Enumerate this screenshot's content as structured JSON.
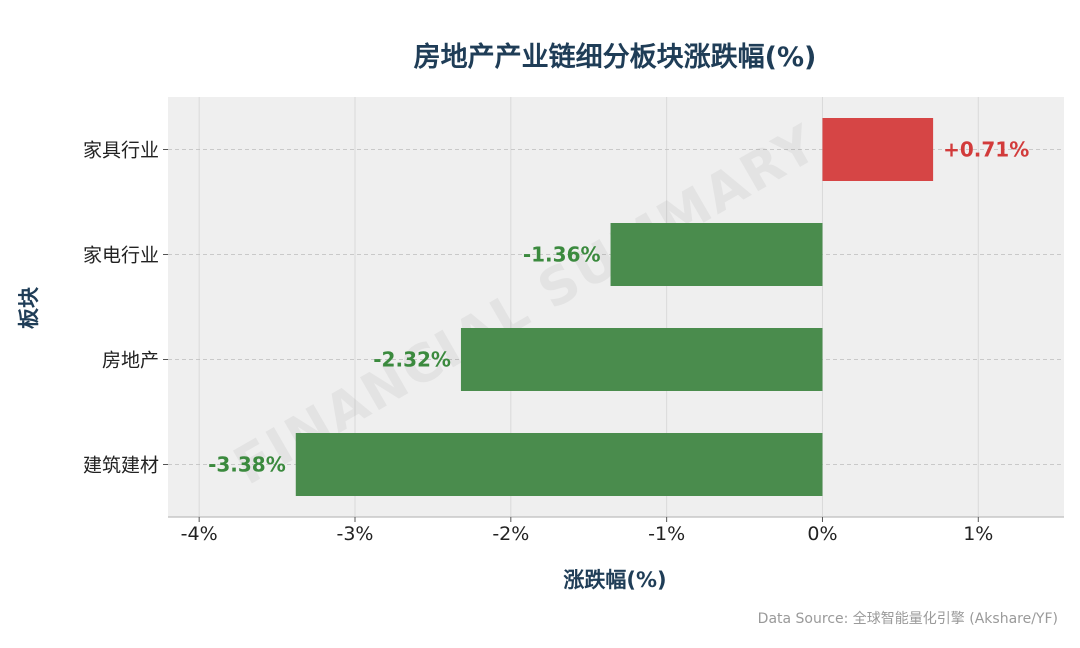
{
  "title": "房地产产业链细分板块涨跌幅(%)",
  "source": "Data Source: 全球智能量化引擎 (Akshare/YF)",
  "watermark": "FINANCIAL SUMMARY",
  "colors": {
    "positive": "#d64545",
    "negative": "#4a8c4d",
    "positive_label": "#d23b3b",
    "negative_label": "#3b8a3e",
    "plot_bg": "#efefef",
    "title": "#1f3d57"
  },
  "chart_data": {
    "type": "bar",
    "orientation": "horizontal",
    "title": "房地产产业链细分板块涨跌幅(%)",
    "xlabel": "涨跌幅(%)",
    "ylabel": "板块",
    "categories": [
      "家具行业",
      "家电行业",
      "房地产",
      "建筑建材"
    ],
    "values": [
      0.71,
      -1.36,
      -2.32,
      -3.38
    ],
    "data_labels": [
      "+0.71%",
      "-1.36%",
      "-2.32%",
      "-3.38%"
    ],
    "xlim": [
      -4.2,
      1.55
    ],
    "xticks": [
      -4,
      -3,
      -2,
      -1,
      0,
      1
    ],
    "xtick_labels": [
      "-4%",
      "-3%",
      "-2%",
      "-1%",
      "0%",
      "1%"
    ],
    "grid": true,
    "legend": "none"
  }
}
